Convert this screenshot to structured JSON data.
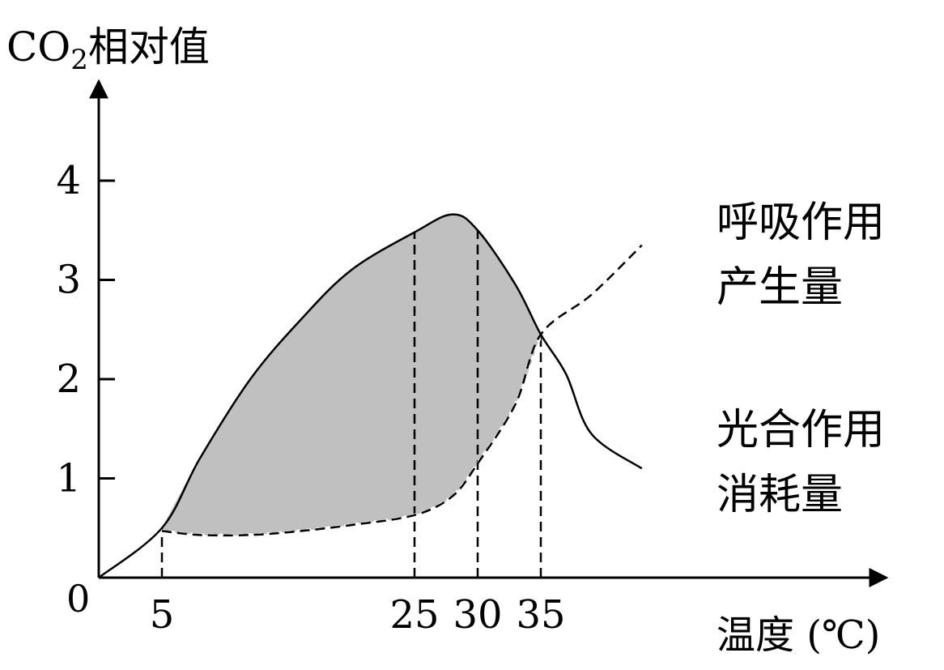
{
  "chart_data": {
    "type": "line",
    "title": "",
    "ylabel_main": "CO",
    "ylabel_sub": "2",
    "ylabel_rest": "相对值",
    "xlabel": "温度 (℃)",
    "origin_label": "0",
    "yticks": [
      "1",
      "2",
      "3",
      "4"
    ],
    "ytick_values": [
      1,
      2,
      3,
      4
    ],
    "xticks": [
      "5",
      "25",
      "30",
      "35"
    ],
    "xtick_values": [
      5,
      25,
      30,
      35
    ],
    "xlim": [
      0,
      43
    ],
    "ylim": [
      0,
      4.6
    ],
    "fill_color": "#c0c0c0",
    "series": [
      {
        "name_line1": "光合作用",
        "name_line2": "消耗量",
        "style": "solid",
        "x": [
          0,
          5,
          8,
          12,
          16,
          20,
          25,
          28,
          30,
          33,
          35,
          37,
          39,
          43
        ],
        "y": [
          0,
          0.5,
          1.2,
          2.0,
          2.6,
          3.1,
          3.48,
          3.66,
          3.5,
          2.95,
          2.45,
          2.05,
          1.45,
          1.1
        ]
      },
      {
        "name_line1": "呼吸作用",
        "name_line2": "产生量",
        "style": "dashed",
        "x": [
          5,
          8,
          12,
          16,
          20,
          25,
          28,
          30,
          33,
          35,
          39,
          43
        ],
        "y": [
          0.47,
          0.43,
          0.43,
          0.47,
          0.53,
          0.63,
          0.82,
          1.15,
          1.75,
          2.45,
          2.85,
          3.35
        ]
      }
    ],
    "shaded_region_x": [
      5,
      35
    ],
    "reference_lines_x": [
      5,
      25,
      30,
      35
    ]
  }
}
